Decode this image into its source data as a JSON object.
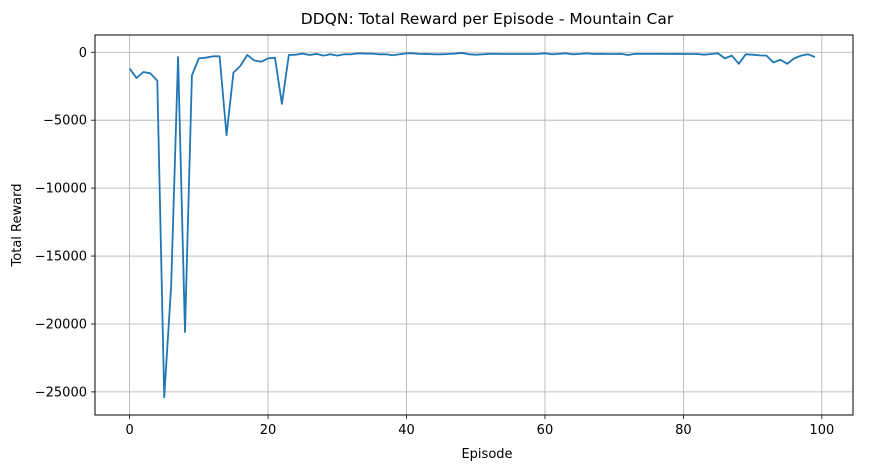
{
  "chart_data": {
    "type": "line",
    "title": "DDQN: Total Reward per Episode - Mountain Car",
    "xlabel": "Episode",
    "ylabel": "Total Reward",
    "xlim": [
      -5,
      104.5
    ],
    "ylim": [
      -26700,
      1270
    ],
    "xticks": [
      0,
      20,
      40,
      60,
      80,
      100
    ],
    "yticks": [
      0,
      -5000,
      -10000,
      -15000,
      -20000,
      -25000
    ],
    "ytick_labels": [
      "0",
      "−5000",
      "−10000",
      "−15000",
      "−20000",
      "−25000"
    ],
    "grid": true,
    "line_color": "#1f77b4",
    "series": [
      {
        "name": "",
        "x": [
          0,
          1,
          2,
          3,
          4,
          5,
          6,
          7,
          8,
          9,
          10,
          11,
          12,
          13,
          14,
          15,
          16,
          17,
          18,
          19,
          20,
          21,
          22,
          23,
          24,
          25,
          26,
          27,
          28,
          29,
          30,
          31,
          32,
          33,
          34,
          35,
          36,
          37,
          38,
          39,
          40,
          41,
          42,
          43,
          44,
          45,
          46,
          47,
          48,
          49,
          50,
          51,
          52,
          53,
          54,
          55,
          56,
          57,
          58,
          59,
          60,
          61,
          62,
          63,
          64,
          65,
          66,
          67,
          68,
          69,
          70,
          71,
          72,
          73,
          74,
          75,
          76,
          77,
          78,
          79,
          80,
          81,
          82,
          83,
          84,
          85,
          86,
          87,
          88,
          89,
          90,
          91,
          92,
          93,
          94,
          95,
          96,
          97,
          98,
          99
        ],
        "values": [
          -1200,
          -1900,
          -1450,
          -1550,
          -2100,
          -25400,
          -17200,
          -350,
          -20600,
          -1700,
          -450,
          -400,
          -300,
          -300,
          -6100,
          -1500,
          -1000,
          -200,
          -600,
          -700,
          -450,
          -400,
          -3800,
          -200,
          -180,
          -100,
          -200,
          -120,
          -250,
          -150,
          -250,
          -150,
          -150,
          -80,
          -100,
          -100,
          -150,
          -150,
          -220,
          -150,
          -80,
          -80,
          -130,
          -120,
          -150,
          -150,
          -130,
          -100,
          -50,
          -150,
          -180,
          -150,
          -120,
          -120,
          -130,
          -130,
          -130,
          -130,
          -130,
          -120,
          -80,
          -150,
          -120,
          -80,
          -150,
          -130,
          -80,
          -130,
          -120,
          -130,
          -130,
          -120,
          -200,
          -120,
          -120,
          -120,
          -120,
          -120,
          -130,
          -120,
          -130,
          -130,
          -130,
          -180,
          -130,
          -80,
          -450,
          -250,
          -850,
          -150,
          -180,
          -230,
          -250,
          -750,
          -550,
          -850,
          -450,
          -250,
          -150,
          -350
        ]
      }
    ]
  }
}
